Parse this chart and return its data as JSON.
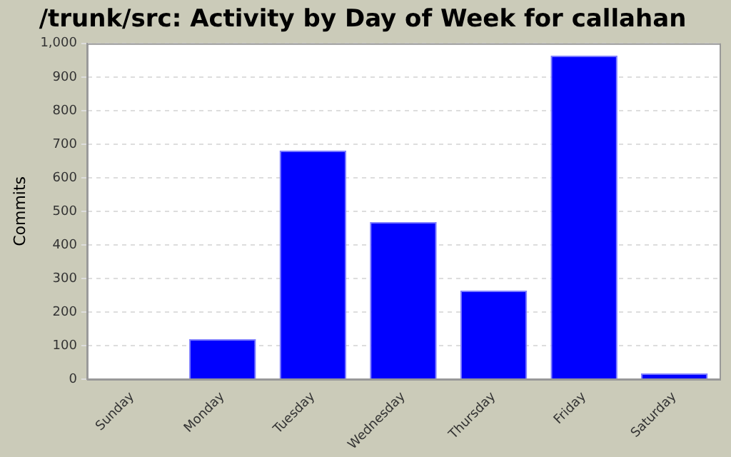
{
  "chart_data": {
    "type": "bar",
    "title": "/trunk/src: Activity by Day of Week for callahan",
    "ylabel": "Commits",
    "categories": [
      "Sunday",
      "Monday",
      "Tuesday",
      "Wednesday",
      "Thursday",
      "Friday",
      "Saturday"
    ],
    "values": [
      0,
      119,
      681,
      468,
      264,
      964,
      17
    ],
    "color": "#0000ff",
    "ylim": [
      0,
      1000
    ],
    "yticks": [
      0,
      {
        "value": 100,
        "label": "100"
      },
      200,
      300,
      400,
      500,
      600,
      700,
      800,
      900,
      {
        "value": 1000,
        "label": "1,000"
      }
    ],
    "grid": "y",
    "legend": false
  }
}
